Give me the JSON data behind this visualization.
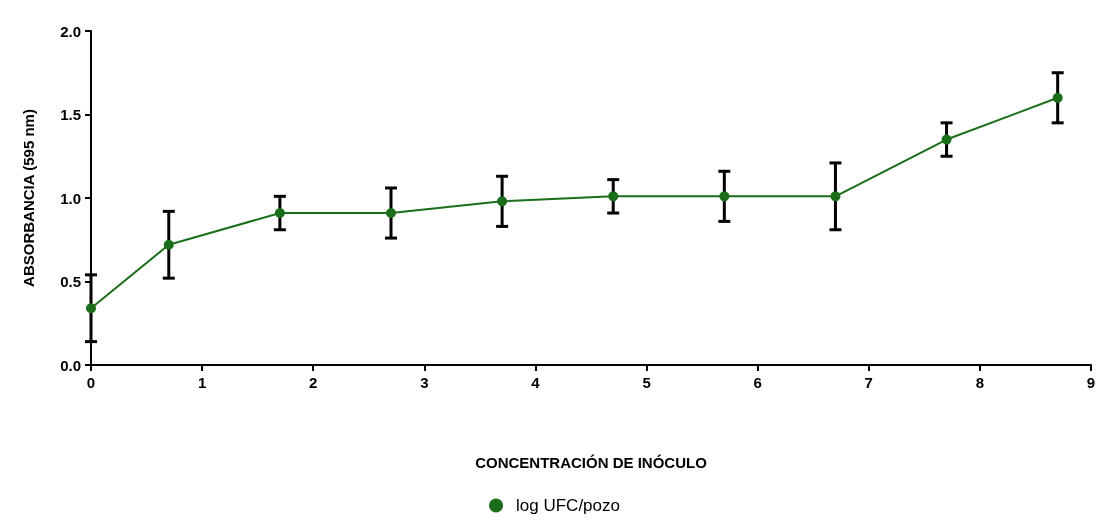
{
  "chart_data": {
    "type": "line",
    "xlabel": "CONCENTRACIÓN DE INÓCULO",
    "ylabel": "ABSORBANCIA (595 nm)",
    "x": [
      0,
      0.7,
      1.7,
      2.7,
      3.7,
      4.7,
      5.7,
      6.7,
      7.7,
      8.7
    ],
    "series": [
      {
        "name": "log UFC/pozo",
        "color": "#1a6e1a",
        "values": [
          0.34,
          0.72,
          0.91,
          0.91,
          0.98,
          1.01,
          1.01,
          1.01,
          1.35,
          1.6
        ],
        "errors": [
          0.2,
          0.2,
          0.1,
          0.15,
          0.15,
          0.1,
          0.15,
          0.2,
          0.1,
          0.15
        ]
      }
    ],
    "xlim": [
      0,
      9
    ],
    "xticks": [
      0,
      1,
      2,
      3,
      4,
      5,
      6,
      7,
      8,
      9
    ],
    "ylim": [
      0,
      2
    ],
    "yticks": [
      {
        "value": 0,
        "label": "0.0"
      },
      {
        "value": 0.5,
        "label": "0.5"
      },
      {
        "value": 1,
        "label": "1.0"
      },
      {
        "value": 1.5,
        "label": "1.5"
      },
      {
        "value": 2,
        "label": "2.0"
      }
    ],
    "marker": "circle",
    "line_style": "solid",
    "legend": "bottom",
    "grid": false
  }
}
